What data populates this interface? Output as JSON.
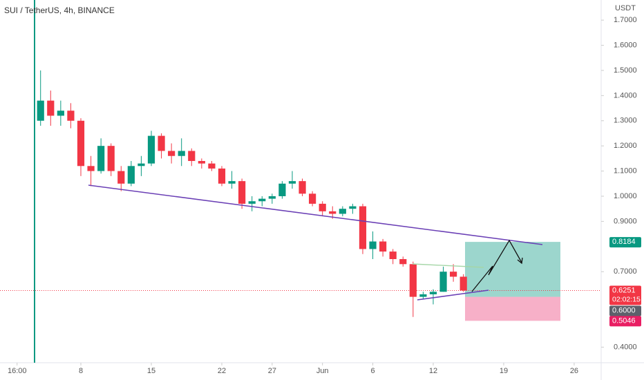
{
  "chart_data": {
    "type": "candlestick",
    "title": "SUI / TetherUS, 4h, BINANCE",
    "y_axis_label": "USDT",
    "x": [
      4,
      5,
      6,
      7,
      8,
      9,
      10,
      11,
      12,
      13,
      14,
      15,
      16,
      17,
      18,
      19,
      20,
      21,
      22,
      23,
      24,
      25,
      26,
      27,
      28,
      29,
      30,
      31,
      32,
      33,
      34,
      35,
      36,
      37,
      38,
      39,
      40,
      41,
      42,
      43,
      44,
      45,
      46
    ],
    "open": [
      1.3,
      1.38,
      1.32,
      1.34,
      1.3,
      1.12,
      1.1,
      1.2,
      1.1,
      1.05,
      1.12,
      1.13,
      1.24,
      1.18,
      1.16,
      1.18,
      1.14,
      1.13,
      1.11,
      1.05,
      1.06,
      0.97,
      0.98,
      0.99,
      1.0,
      1.05,
      1.06,
      1.01,
      0.97,
      0.94,
      0.93,
      0.95,
      0.96,
      0.79,
      0.82,
      0.78,
      0.75,
      0.73,
      0.6,
      0.61,
      0.62,
      0.7,
      0.68
    ],
    "high": [
      1.5,
      1.42,
      1.38,
      1.37,
      1.31,
      1.16,
      1.23,
      1.21,
      1.12,
      1.14,
      1.16,
      1.26,
      1.25,
      1.21,
      1.23,
      1.19,
      1.15,
      1.14,
      1.12,
      1.1,
      1.07,
      1.0,
      1.0,
      1.01,
      1.06,
      1.1,
      1.07,
      1.02,
      0.98,
      0.96,
      0.96,
      0.97,
      0.97,
      0.86,
      0.83,
      0.79,
      0.76,
      0.74,
      0.62,
      0.63,
      0.72,
      0.73,
      0.69
    ],
    "low": [
      1.28,
      1.28,
      1.28,
      1.27,
      1.08,
      1.04,
      1.09,
      1.08,
      1.02,
      1.04,
      1.08,
      1.12,
      1.15,
      1.13,
      1.12,
      1.12,
      1.11,
      1.1,
      1.04,
      1.03,
      0.95,
      0.94,
      0.96,
      0.97,
      0.99,
      1.03,
      1.0,
      0.96,
      0.92,
      0.91,
      0.92,
      0.93,
      0.77,
      0.75,
      0.76,
      0.73,
      0.72,
      0.52,
      0.59,
      0.57,
      0.62,
      0.66,
      0.62
    ],
    "close": [
      1.38,
      1.32,
      1.34,
      1.3,
      1.12,
      1.1,
      1.2,
      1.1,
      1.05,
      1.12,
      1.13,
      1.24,
      1.18,
      1.16,
      1.18,
      1.14,
      1.13,
      1.11,
      1.05,
      1.06,
      0.97,
      0.98,
      0.99,
      1.0,
      1.05,
      1.06,
      1.01,
      0.97,
      0.94,
      0.93,
      0.95,
      0.96,
      0.79,
      0.82,
      0.78,
      0.75,
      0.73,
      0.6,
      0.61,
      0.62,
      0.7,
      0.68,
      0.6251
    ],
    "up_color": "#089981",
    "down_color": "#f23645",
    "xlim": [
      -0.03,
      59.68
    ],
    "xticks": [
      {
        "value": 1.667,
        "label": "16:00"
      },
      8,
      15,
      22,
      27,
      {
        "value": 32,
        "label": "Jun"
      },
      {
        "value": 37,
        "label": "6"
      },
      {
        "value": 43,
        "label": "12"
      },
      {
        "value": 50,
        "label": "19"
      },
      {
        "value": 57,
        "label": "26"
      }
    ],
    "ylim": [
      0.338,
      1.78
    ],
    "yticks": [
      {
        "value": 0.4,
        "label": "0.4000"
      },
      {
        "value": 0.7,
        "label": "0.7000"
      },
      {
        "value": 0.9,
        "label": "0.9000"
      },
      {
        "value": 1.0,
        "label": "1.0000"
      },
      {
        "value": 1.1,
        "label": "1.1000"
      },
      {
        "value": 1.2,
        "label": "1.2000"
      },
      {
        "value": 1.3,
        "label": "1.3000"
      },
      {
        "value": 1.4,
        "label": "1.4000"
      },
      {
        "value": 1.5,
        "label": "1.5000"
      },
      {
        "value": 1.6,
        "label": "1.6000"
      },
      {
        "value": 1.7,
        "label": "1.7000"
      }
    ],
    "last_price": 0.6251,
    "countdown": "02:02:15",
    "position": {
      "target": 0.8184,
      "entry": {
        "value": 0.6,
        "label": "0.6000"
      },
      "stop": 0.5046
    }
  }
}
